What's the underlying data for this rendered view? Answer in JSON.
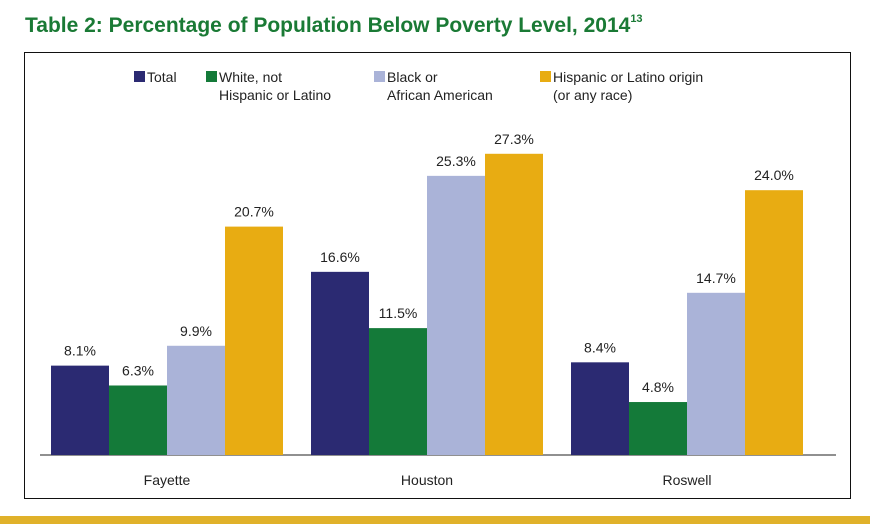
{
  "title": "Table 2: Percentage of Population Below Poverty Level, 2014",
  "footnote": "13",
  "colors": {
    "title": "#1a7a35",
    "rule": "#e0b12a"
  },
  "chart_data": {
    "type": "bar",
    "title": "Percentage of Population Below Poverty Level, 2014",
    "categories": [
      "Fayette",
      "Houston",
      "Roswell"
    ],
    "ylim": [
      0,
      30
    ],
    "series": [
      {
        "name": "Total",
        "legend": "Total",
        "color": "#2b2a72",
        "values": [
          8.1,
          16.6,
          8.4
        ],
        "labels": [
          "8.1%",
          "16.6%",
          "8.4%"
        ]
      },
      {
        "name": "White, not Hispanic or Latino",
        "legend": "White, not\nHispanic or Latino",
        "color": "#147a39",
        "values": [
          6.3,
          11.5,
          4.8
        ],
        "labels": [
          "6.3%",
          "11.5%",
          "4.8%"
        ]
      },
      {
        "name": "Black or African American",
        "legend": "Black or\nAfrican American",
        "color": "#aab3d8",
        "values": [
          9.9,
          25.3,
          14.7
        ],
        "labels": [
          "9.9%",
          "25.3%",
          "14.7%"
        ]
      },
      {
        "name": "Hispanic or Latino origin (or any race)",
        "legend": "Hispanic or Latino origin\n(or any race)",
        "color": "#e8ac12",
        "values": [
          20.7,
          27.3,
          24.0
        ],
        "labels": [
          "20.7%",
          "27.3%",
          "24.0%"
        ]
      }
    ]
  }
}
